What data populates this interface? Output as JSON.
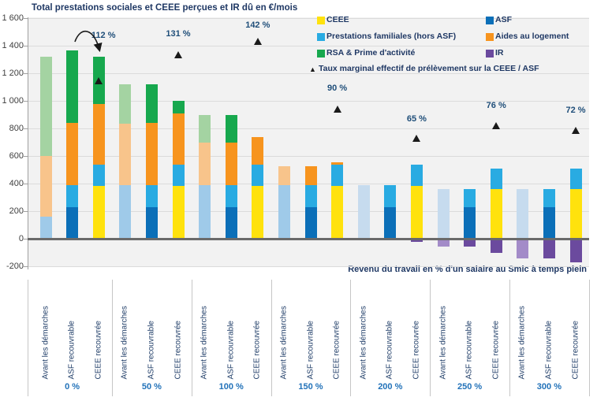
{
  "title": "Total prestations sociales et CEEE perçues et IR dû en €/mois",
  "x_axis_title": "Revenu du travail en % d'un salaire au Smic à temps plein",
  "colors": {
    "ceee": "#FFE20D",
    "asf": "#0B6FB8",
    "pf": "#29ABE2",
    "pf_light": "#9FCAE9",
    "pf_pale": "#C6DBEE",
    "al": "#F7941E",
    "al_light": "#F8C48B",
    "rsa": "#17A84E",
    "rsa_light": "#A4D3A2",
    "ir": "#6B4A9E",
    "ir_light": "#A38BC8",
    "marker": "#1A1A1A"
  },
  "legend": {
    "items": [
      {
        "label": "CEEE",
        "series": "ceee",
        "col": 0,
        "row": 0
      },
      {
        "label": "ASF",
        "series": "asf",
        "col": 1,
        "row": 0
      },
      {
        "label": "Prestations familiales (hors ASF)",
        "series": "pf",
        "col": 0,
        "row": 1
      },
      {
        "label": "Aides au logement",
        "series": "al",
        "col": 1,
        "row": 1
      },
      {
        "label": "RSA & Prime d'activité",
        "series": "rsa",
        "col": 0,
        "row": 2
      },
      {
        "label": "IR",
        "series": "ir",
        "col": 1,
        "row": 2
      }
    ],
    "marker_item": {
      "symbol": "▲",
      "label": "Taux marginal effectif de prélèvement sur la CEEE / ASF"
    }
  },
  "chart_data": {
    "type": "bar",
    "stacked": true,
    "unit": "€/mois",
    "ylim": [
      -200,
      1600
    ],
    "grid": true,
    "y_ticks": [
      {
        "v": 1600,
        "label": "1 600"
      },
      {
        "v": 1400,
        "label": "1 400"
      },
      {
        "v": 1200,
        "label": "1 200"
      },
      {
        "v": 1000,
        "label": "1 000"
      },
      {
        "v": 800,
        "label": "800"
      },
      {
        "v": 600,
        "label": "600"
      },
      {
        "v": 400,
        "label": "400"
      },
      {
        "v": 200,
        "label": "200"
      },
      {
        "v": 0,
        "label": "0"
      },
      {
        "v": -200,
        "label": "-200"
      }
    ],
    "bar_labels": [
      "Avant les démarches",
      "ASF recouvrable",
      "CEEE recouvrée"
    ],
    "series_names": {
      "ceee": "CEEE",
      "asf": "ASF",
      "pf": "Prestations familiales (hors ASF)",
      "al": "Aides au logement",
      "rsa": "RSA & Prime d'activité",
      "ir": "IR"
    },
    "groups": [
      {
        "label": "0 %",
        "tmep": {
          "text": "112 %",
          "tri_at": 1145,
          "label_at": 1470,
          "dx": 6,
          "arrow": true
        },
        "bars": [
          [
            [
              "pf",
              "l",
              0,
              160
            ],
            [
              "al",
              "l",
              160,
              600
            ],
            [
              "rsa",
              "l",
              600,
              1320
            ]
          ],
          [
            [
              "asf",
              "s",
              0,
              230
            ],
            [
              "pf",
              "s",
              230,
              390
            ],
            [
              "al",
              "s",
              390,
              840
            ],
            [
              "rsa",
              "s",
              840,
              1365
            ]
          ],
          [
            [
              "ceee",
              "s",
              0,
              385
            ],
            [
              "pf",
              "s",
              385,
              535
            ],
            [
              "al",
              "s",
              535,
              980
            ],
            [
              "rsa",
              "s",
              980,
              1320
            ]
          ]
        ]
      },
      {
        "label": "50 %",
        "tmep": {
          "text": "131 %",
          "tri_at": 1330,
          "label_at": 1480,
          "dx": 0,
          "arrow": false
        },
        "bars": [
          [
            [
              "pf",
              "l",
              0,
              390
            ],
            [
              "al",
              "l",
              390,
              835
            ],
            [
              "rsa",
              "l",
              835,
              1120
            ]
          ],
          [
            [
              "asf",
              "s",
              0,
              230
            ],
            [
              "pf",
              "s",
              230,
              390
            ],
            [
              "al",
              "s",
              390,
              840
            ],
            [
              "rsa",
              "s",
              840,
              1120
            ]
          ],
          [
            [
              "ceee",
              "s",
              0,
              385
            ],
            [
              "pf",
              "s",
              385,
              535
            ],
            [
              "al",
              "s",
              535,
              910
            ],
            [
              "rsa",
              "s",
              910,
              1000
            ]
          ]
        ]
      },
      {
        "label": "100 %",
        "tmep": {
          "text": "142 %",
          "tri_at": 1430,
          "label_at": 1545,
          "dx": 0,
          "arrow": false
        },
        "bars": [
          [
            [
              "pf",
              "l",
              0,
              390
            ],
            [
              "al",
              "l",
              390,
              700
            ],
            [
              "rsa",
              "l",
              700,
              900
            ]
          ],
          [
            [
              "asf",
              "s",
              0,
              230
            ],
            [
              "pf",
              "s",
              230,
              390
            ],
            [
              "al",
              "s",
              390,
              700
            ],
            [
              "rsa",
              "s",
              700,
              895
            ]
          ],
          [
            [
              "ceee",
              "s",
              0,
              385
            ],
            [
              "pf",
              "s",
              385,
              540
            ],
            [
              "al",
              "s",
              540,
              740
            ]
          ]
        ]
      },
      {
        "label": "150 %",
        "tmep": {
          "text": "90 %",
          "tri_at": 940,
          "label_at": 1085,
          "dx": 0,
          "arrow": false
        },
        "bars": [
          [
            [
              "pf",
              "l",
              0,
              390
            ],
            [
              "al",
              "l",
              390,
              525
            ]
          ],
          [
            [
              "asf",
              "s",
              0,
              230
            ],
            [
              "pf",
              "s",
              230,
              390
            ],
            [
              "al",
              "s",
              390,
              525
            ]
          ],
          [
            [
              "ceee",
              "s",
              0,
              385
            ],
            [
              "pf",
              "s",
              385,
              535
            ],
            [
              "al",
              "s",
              535,
              557
            ]
          ]
        ]
      },
      {
        "label": "200 %",
        "tmep": {
          "text": "65 %",
          "tri_at": 725,
          "label_at": 865,
          "dx": 0,
          "arrow": false
        },
        "bars": [
          [
            [
              "pf",
              "p",
              0,
              390
            ]
          ],
          [
            [
              "asf",
              "s",
              0,
              230
            ],
            [
              "pf",
              "s",
              230,
              390
            ]
          ],
          [
            [
              "ceee",
              "s",
              0,
              385
            ],
            [
              "pf",
              "s",
              385,
              540
            ],
            [
              "ir",
              "s",
              0,
              -22
            ]
          ]
        ]
      },
      {
        "label": "250 %",
        "tmep": {
          "text": "76 %",
          "tri_at": 820,
          "label_at": 960,
          "dx": 0,
          "arrow": false
        },
        "bars": [
          [
            [
              "pf",
              "p",
              0,
              360
            ],
            [
              "ir",
              "l",
              0,
              -55
            ]
          ],
          [
            [
              "asf",
              "s",
              0,
              230
            ],
            [
              "pf",
              "s",
              230,
              360
            ],
            [
              "ir",
              "s",
              0,
              -55
            ]
          ],
          [
            [
              "ceee",
              "s",
              0,
              360
            ],
            [
              "pf",
              "s",
              360,
              510
            ],
            [
              "ir",
              "s",
              0,
              -105
            ]
          ]
        ]
      },
      {
        "label": "300 %",
        "tmep": {
          "text": "72 %",
          "tri_at": 785,
          "label_at": 925,
          "dx": 0,
          "arrow": false
        },
        "bars": [
          [
            [
              "pf",
              "p",
              0,
              360
            ],
            [
              "ir",
              "l",
              0,
              -140
            ]
          ],
          [
            [
              "asf",
              "s",
              0,
              230
            ],
            [
              "pf",
              "s",
              230,
              360
            ],
            [
              "ir",
              "s",
              0,
              -145
            ]
          ],
          [
            [
              "ceee",
              "s",
              0,
              360
            ],
            [
              "pf",
              "s",
              360,
              510
            ],
            [
              "ir",
              "s",
              0,
              -170
            ]
          ]
        ]
      }
    ]
  }
}
